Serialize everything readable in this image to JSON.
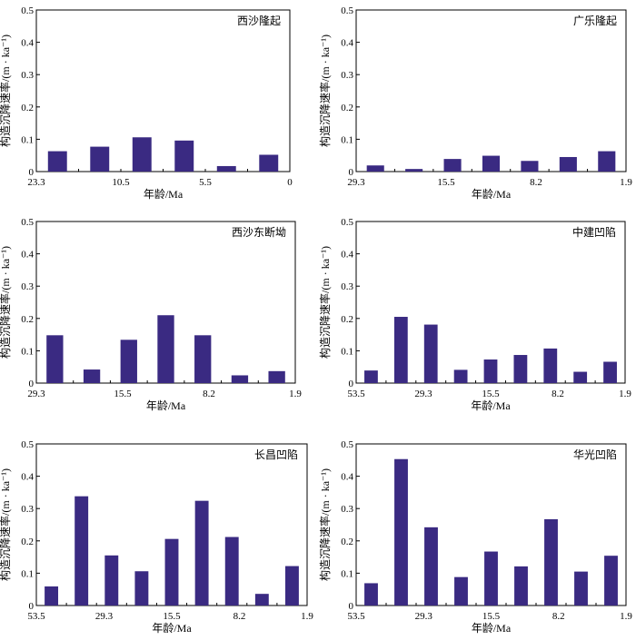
{
  "chart_data": [
    {
      "type": "bar",
      "title": "西沙隆起",
      "xlabel": "年龄/Ma",
      "ylabel": "构造沉降速率/(m · ka⁻¹)",
      "ylim": [
        0,
        0.5
      ],
      "yticks": [
        "0",
        "0.1",
        "0.2",
        "0.3",
        "0.4",
        "0.5"
      ],
      "xticks": [
        "23.3",
        "10.5",
        "5.5",
        "0"
      ],
      "values": [
        0.063,
        0.077,
        0.106,
        0.096,
        0.017,
        0.052
      ],
      "color": "#3a2a82"
    },
    {
      "type": "bar",
      "title": "广乐隆起",
      "xlabel": "年龄/Ma",
      "ylabel": "构造沉降速率/(m · ka⁻¹)",
      "ylim": [
        0,
        0.5
      ],
      "yticks": [
        "0",
        "0.1",
        "0.2",
        "0.3",
        "0.4",
        "0.5"
      ],
      "xticks": [
        "29.3",
        "15.5",
        "8.2",
        "1.9"
      ],
      "values": [
        0.019,
        0.008,
        0.039,
        0.049,
        0.033,
        0.045,
        0.063
      ],
      "color": "#3a2a82"
    },
    {
      "type": "bar",
      "title": "西沙东断坳",
      "xlabel": "年龄/Ma",
      "ylabel": "构造沉降速率/(m · ka⁻¹)",
      "ylim": [
        0,
        0.5
      ],
      "yticks": [
        "0",
        "0.1",
        "0.2",
        "0.3",
        "0.4",
        "0.5"
      ],
      "xticks": [
        "29.3",
        "15.5",
        "8.2",
        "1.9"
      ],
      "values": [
        0.148,
        0.042,
        0.134,
        0.21,
        0.148,
        0.024,
        0.037
      ],
      "color": "#3a2a82"
    },
    {
      "type": "bar",
      "title": "中建凹陷",
      "xlabel": "年龄/Ma",
      "ylabel": "构造沉降速率/(m · ka⁻¹)",
      "ylim": [
        0,
        0.5
      ],
      "yticks": [
        "0",
        "0.1",
        "0.2",
        "0.3",
        "0.4",
        "0.5"
      ],
      "xticks": [
        "53.5",
        "29.3",
        "15.5",
        "8.2",
        "1.9"
      ],
      "values": [
        0.039,
        0.205,
        0.181,
        0.041,
        0.073,
        0.087,
        0.107,
        0.035,
        0.066
      ],
      "color": "#3a2a82"
    },
    {
      "type": "bar",
      "title": "长昌凹陷",
      "xlabel": "年龄/Ma",
      "ylabel": "构造沉降速率/(m · ka⁻¹)",
      "ylim": [
        0,
        0.5
      ],
      "yticks": [
        "0",
        "0.1",
        "0.2",
        "0.3",
        "0.4",
        "0.5"
      ],
      "xticks": [
        "53.5",
        "29.3",
        "15.5",
        "8.2",
        "1.9"
      ],
      "values": [
        0.059,
        0.338,
        0.155,
        0.106,
        0.206,
        0.324,
        0.212,
        0.036,
        0.122
      ],
      "color": "#3a2a82"
    },
    {
      "type": "bar",
      "title": "华光凹陷",
      "xlabel": "年龄/Ma",
      "ylabel": "构造沉降速率/(m · ka⁻¹)",
      "ylim": [
        0,
        0.5
      ],
      "yticks": [
        "0",
        "0.1",
        "0.2",
        "0.3",
        "0.4",
        "0.5"
      ],
      "xticks": [
        "53.5",
        "29.3",
        "15.5",
        "8.2",
        "1.9"
      ],
      "values": [
        0.069,
        0.453,
        0.242,
        0.088,
        0.167,
        0.121,
        0.267,
        0.105,
        0.154
      ],
      "color": "#3a2a82"
    }
  ]
}
